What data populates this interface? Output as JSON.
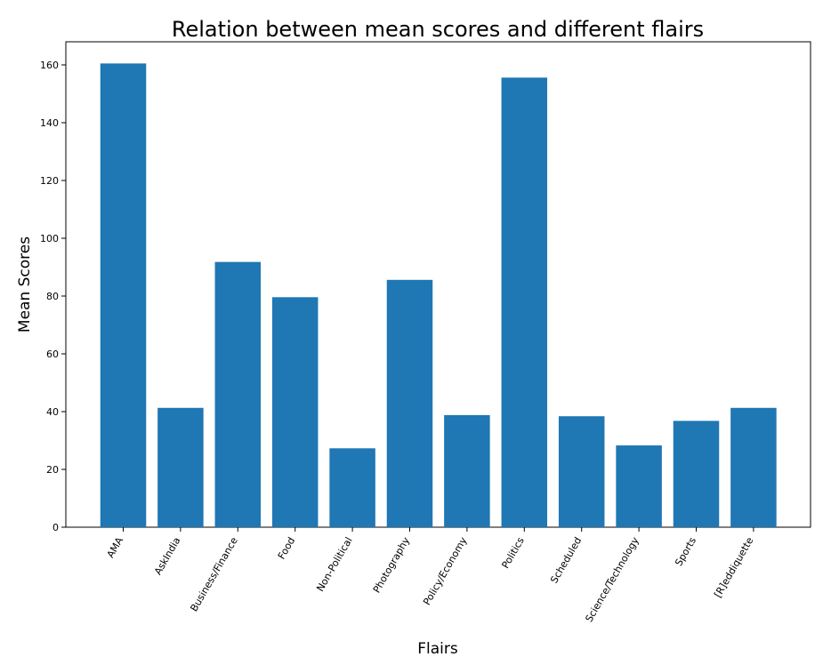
{
  "chart_data": {
    "type": "bar",
    "title": "Relation between mean scores and different flairs",
    "xlabel": "Flairs",
    "ylabel": "Mean Scores",
    "categories": [
      "AMA",
      "AskIndia",
      "Business/Finance",
      "Food",
      "Non-Political",
      "Photography",
      "Policy/Economy",
      "Politics",
      "Scheduled",
      "Science/Technology",
      "Sports",
      "[R]eddiquette"
    ],
    "values": [
      160.5,
      41.3,
      91.8,
      79.6,
      27.3,
      85.6,
      38.8,
      155.6,
      38.4,
      28.3,
      36.8,
      41.3
    ],
    "ylim": [
      0,
      168
    ],
    "yticks": [
      0,
      20,
      40,
      60,
      80,
      100,
      120,
      140,
      160
    ],
    "grid": false,
    "bar_color": "#1f77b4"
  }
}
